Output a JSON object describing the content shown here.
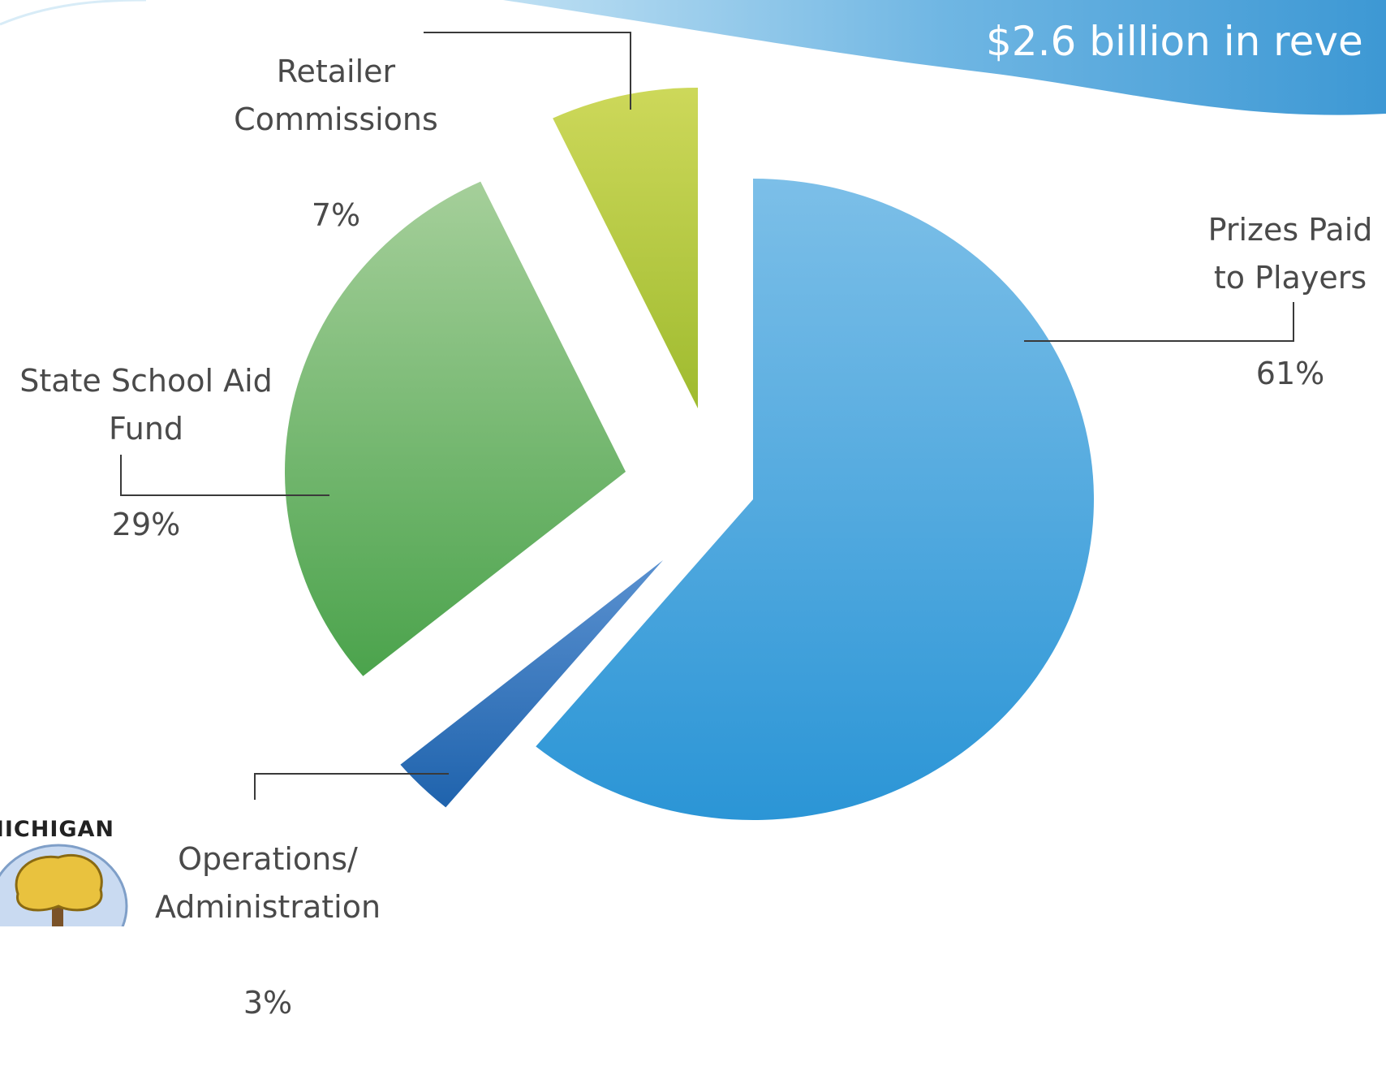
{
  "header": {
    "subtitle": "$2.6 billion in reve"
  },
  "logo": {
    "text": "MICHIGAN",
    "icon": "tree-icon"
  },
  "colors": {
    "prizes": "#3e9fd8",
    "school_aid": "#5fac5c",
    "retailer": "#b5c93a",
    "operations": "#2f78bd",
    "banner": "#5aa8dc"
  },
  "chart_data": {
    "type": "pie",
    "slices": [
      {
        "label": "Prizes Paid\nto Players",
        "value": 61,
        "value_label": "61%"
      },
      {
        "label": "Operations/\nAdministration",
        "value": 3,
        "value_label": "3%"
      },
      {
        "label": "State School Aid\nFund",
        "value": 29,
        "value_label": "29%"
      },
      {
        "label": "Retailer\nCommissions",
        "value": 7,
        "value_label": "7%"
      }
    ],
    "exploded": true,
    "legend": "none"
  }
}
